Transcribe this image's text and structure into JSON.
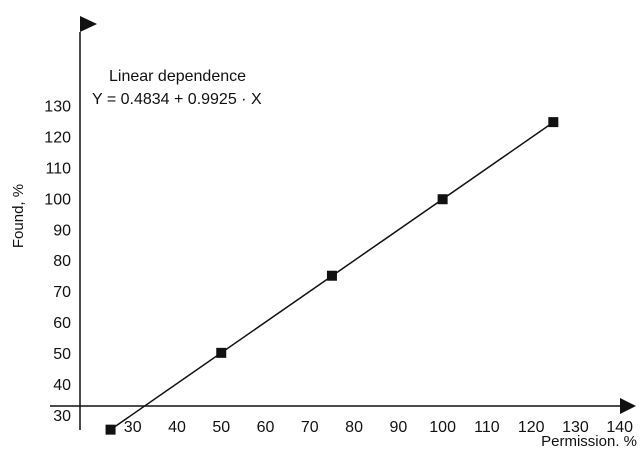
{
  "chart_data": {
    "type": "scatter",
    "title": "",
    "xlabel": "Permission. %",
    "ylabel": "Found, %",
    "xlim": [
      15,
      140
    ],
    "ylim": [
      20,
      140
    ],
    "x_ticks": [
      30,
      40,
      50,
      60,
      70,
      80,
      90,
      100,
      110,
      120,
      130,
      140
    ],
    "y_ticks": [
      30,
      40,
      50,
      60,
      70,
      80,
      90,
      100,
      110,
      120,
      130
    ],
    "grid": false,
    "legend": "none",
    "series": [
      {
        "x": [
          25,
          50,
          75,
          100,
          125
        ],
        "y": [
          25.3,
          50.1,
          75.0,
          99.7,
          124.6
        ],
        "marker": "square",
        "color": "#111111"
      }
    ],
    "fit_line": {
      "intercept": 0.4834,
      "slope": 0.9925,
      "x_range": [
        25,
        125
      ]
    },
    "annotations": {
      "line1": "Linear dependence",
      "line2": "Y = 0.4834 + 0.9925 · X"
    }
  }
}
